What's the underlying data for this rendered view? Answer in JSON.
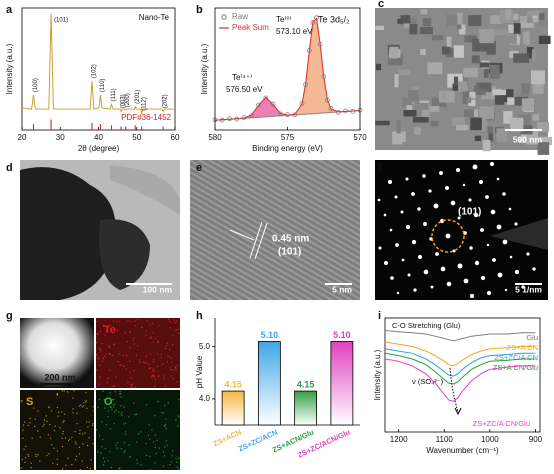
{
  "panel_labels": [
    "a",
    "b",
    "c",
    "d",
    "e",
    "f",
    "g",
    "h",
    "i"
  ],
  "chart_data": [
    {
      "type": "xrd",
      "xlabel": "2θ (degree)",
      "ylabel": "Intensity (a.u.)",
      "xlim": [
        20,
        60
      ],
      "xticks": [
        20,
        30,
        40,
        50,
        60
      ],
      "ylim": [
        0,
        105
      ],
      "x": [
        20,
        22.5,
        23,
        23.5,
        27,
        27.6,
        28.2,
        37.8,
        38.3,
        38.8,
        40.1,
        40.5,
        40.9,
        43.0,
        43.4,
        43.8,
        45.6,
        45.9,
        46.2,
        46.8,
        47.1,
        47.4,
        49.3,
        49.6,
        49.9,
        51.0,
        51.3,
        51.6,
        56.6,
        56.9,
        57.2,
        60
      ],
      "series": [
        {
          "name": "Nano-Te",
          "color": "#c8961e",
          "values": [
            19,
            18,
            30,
            18,
            18,
            100,
            18,
            18,
            42,
            18,
            19,
            30,
            19,
            18,
            22,
            18,
            18,
            16,
            18,
            18,
            17,
            18,
            18,
            20,
            18,
            18,
            14,
            18,
            18,
            16,
            18,
            18
          ]
        }
      ],
      "reference": {
        "name": "PDF#36-1452",
        "color": "#d62020",
        "x": [
          23.0,
          27.6,
          38.3,
          40.5,
          43.4,
          45.9,
          47.1,
          49.6,
          51.3,
          56.9
        ],
        "values": [
          5,
          9,
          6,
          5,
          4,
          3,
          3,
          4,
          3,
          3
        ]
      },
      "peak_labels": [
        "(100)",
        "(101)",
        "(102)",
        "(110)",
        "(111)",
        "(003)",
        "(200)",
        "(201)",
        "(112)",
        "(202)"
      ]
    },
    {
      "type": "xps",
      "xlabel": "Binding energy (eV)",
      "ylabel": "Intensity (a.u.)",
      "xlim": [
        580,
        570
      ],
      "xticks": [
        580,
        575,
        570
      ],
      "ylim": [
        0,
        100
      ],
      "x": [
        580,
        579.5,
        579,
        578.5,
        578,
        577.5,
        577,
        576.5,
        576,
        575.5,
        575,
        574.5,
        574,
        573.75,
        573.5,
        573.25,
        573,
        572.75,
        572.5,
        572.25,
        572,
        571.5,
        571,
        570.5,
        570
      ],
      "series": [
        {
          "name": "Raw",
          "color": "#777777",
          "values": [
            8.3,
            8.1,
            9.2,
            8.9,
            10.2,
            11.7,
            20.5,
            26.3,
            21.3,
            13.2,
            12.6,
            12.4,
            21.8,
            37.2,
            65.1,
            88.1,
            92.0,
            70.2,
            43.9,
            24.4,
            17.6,
            14.5,
            15.6,
            15.3,
            16.3
          ]
        },
        {
          "name": "Peak Sum",
          "color": "#e03030",
          "values": [
            8,
            8.4,
            8.8,
            9.2,
            9.8,
            12.1,
            20,
            26.8,
            20.8,
            13.7,
            12.2,
            12.8,
            21.2,
            37.8,
            64.5,
            88.6,
            91.4,
            70.7,
            43.4,
            24.9,
            17.2,
            14.9,
            15.2,
            15.6,
            16
          ]
        }
      ],
      "background": [
        8,
        8.4,
        8.8,
        9.2,
        9.6,
        10,
        10.4,
        10.8,
        11.2,
        11.6,
        12,
        12.4,
        12.8,
        13.0,
        13.2,
        13.4,
        13.6,
        13.8,
        14,
        14.2,
        14.4,
        14.8,
        15.2,
        15.6,
        16
      ],
      "fits": [
        {
          "color": "#e8559e",
          "values": [
            0,
            0,
            0,
            0,
            0.16,
            2.1,
            9.6,
            16,
            9.6,
            2.1,
            0.16,
            0,
            0,
            0,
            0,
            0,
            0,
            0,
            0,
            0,
            0,
            0,
            0,
            0,
            0
          ]
        },
        {
          "color": "#f0a070",
          "values": [
            0,
            0,
            0,
            0,
            0,
            0,
            0,
            0,
            0,
            0,
            0,
            0.35,
            8.4,
            24.8,
            51.3,
            75.2,
            77.8,
            56.9,
            29.4,
            10.7,
            2.8,
            0.06,
            0,
            0,
            0
          ]
        }
      ],
      "annotations": [
        "Te⁽⁴⁺⁾",
        "576.50 eV",
        "Te⁽⁰⁾",
        "573.10 eV",
        "Te 3d₅/₂"
      ]
    },
    {
      "type": "bar",
      "ylabel": "pH Value",
      "categories": [
        "ZS+ACN",
        "ZS+ZC/ACN",
        "ZS+ACN/Glu",
        "ZS+ZC/ACN/Glu"
      ],
      "values": [
        4.15,
        5.1,
        4.15,
        5.1
      ],
      "value_labels": [
        "4.15",
        "5.10",
        "4.15",
        "5.10"
      ],
      "colors": [
        "#f5b942",
        "#3fa6e8",
        "#2f9e44",
        "#e040c0"
      ],
      "ylim": [
        3.5,
        5.55
      ],
      "yticks": [
        {
          "value": 4,
          "label": "4.0"
        },
        {
          "value": 5,
          "label": "5.0"
        }
      ]
    },
    {
      "type": "ftir",
      "xlabel": "Wavenumber (cm⁻¹)",
      "ylabel": "Intensity (a.u.)",
      "xlim": [
        1230,
        890
      ],
      "xticks": [
        1200,
        1100,
        1000,
        900
      ],
      "ylim": [
        0,
        10
      ],
      "x": [
        1230,
        1200,
        1170,
        1140,
        1120,
        1100,
        1090,
        1080,
        1070,
        1060,
        1040,
        1020,
        1000,
        960,
        930,
        900
      ],
      "series": [
        {
          "name": "Glu",
          "color": "#7f7f7f",
          "values": [
            8.9,
            8.8,
            8.7,
            8.6,
            8.4,
            8.2,
            8.1,
            8.0,
            8.1,
            8.2,
            8.4,
            8.5,
            8.6,
            8.6,
            8.7,
            8.7
          ]
        },
        {
          "name": "ZS+A CN",
          "color": "#f5a623",
          "values": [
            7.9,
            7.7,
            7.5,
            7.1,
            6.7,
            6.2,
            5.9,
            5.8,
            6.0,
            6.3,
            6.8,
            7.1,
            7.3,
            7.4,
            7.5,
            7.5
          ]
        },
        {
          "name": "ZS+ZC/A CN",
          "color": "#29a3e0",
          "values": [
            7.3,
            7.1,
            6.9,
            6.4,
            5.9,
            5.3,
            5.0,
            4.9,
            5.1,
            5.5,
            6.1,
            6.5,
            6.7,
            6.8,
            6.9,
            6.9
          ]
        },
        {
          "name": "ZS+A CN/Glu",
          "color": "#2a9d3a",
          "values": [
            6.9,
            6.7,
            6.4,
            5.9,
            5.3,
            4.6,
            4.3,
            4.2,
            4.4,
            4.8,
            5.5,
            5.9,
            6.2,
            6.3,
            6.4,
            6.4
          ]
        },
        {
          "name": "ZS+ZC/A CN/Glu",
          "color": "#e040c8",
          "values": [
            6.4,
            6.2,
            5.8,
            5.1,
            4.3,
            3.3,
            2.8,
            2.7,
            3.0,
            3.6,
            4.5,
            5.1,
            5.5,
            5.7,
            5.8,
            5.8
          ]
        }
      ],
      "annotations": [
        "C-O Stretching (Glu)",
        "ν (SO₄²⁻)"
      ]
    }
  ],
  "images": {
    "c": {
      "scale_bar": "500 nm"
    },
    "d": {
      "scale_bar": "100 nm"
    },
    "e": {
      "scale_bar": "5 nm",
      "spacing": "0.45 nm",
      "plane": "(101)"
    },
    "f": {
      "scale_bar": "5 1/nm",
      "plane": "(101)"
    },
    "g": {
      "scale_bar": "200 nm",
      "elements": [
        "Te",
        "S",
        "O"
      ]
    }
  }
}
